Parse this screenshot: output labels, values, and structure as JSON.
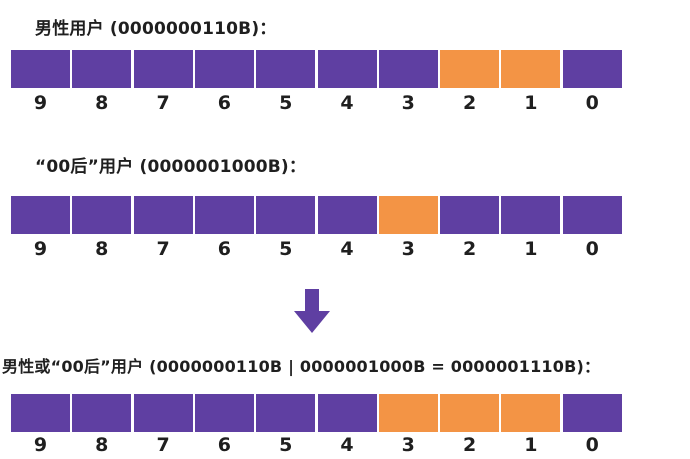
{
  "diagram": {
    "colors": {
      "zero": "#5f3fa2",
      "one": "#f39445"
    },
    "blocks": [
      {
        "caption": "男性用户 (0000000110B)：",
        "bits": [
          0,
          0,
          0,
          0,
          0,
          0,
          0,
          1,
          1,
          0
        ]
      },
      {
        "caption": "“00后”用户 (0000001000B)：",
        "bits": [
          0,
          0,
          0,
          0,
          0,
          0,
          1,
          0,
          0,
          0
        ]
      },
      {
        "caption": "男性或“00后”用户 (0000000110B | 0000001000B = 0000001110B)：",
        "bits": [
          0,
          0,
          0,
          0,
          0,
          0,
          1,
          1,
          1,
          0
        ]
      }
    ],
    "bit_labels": [
      "9",
      "8",
      "7",
      "6",
      "5",
      "4",
      "3",
      "2",
      "1",
      "0"
    ],
    "arrow_icon": "down-arrow-icon"
  }
}
